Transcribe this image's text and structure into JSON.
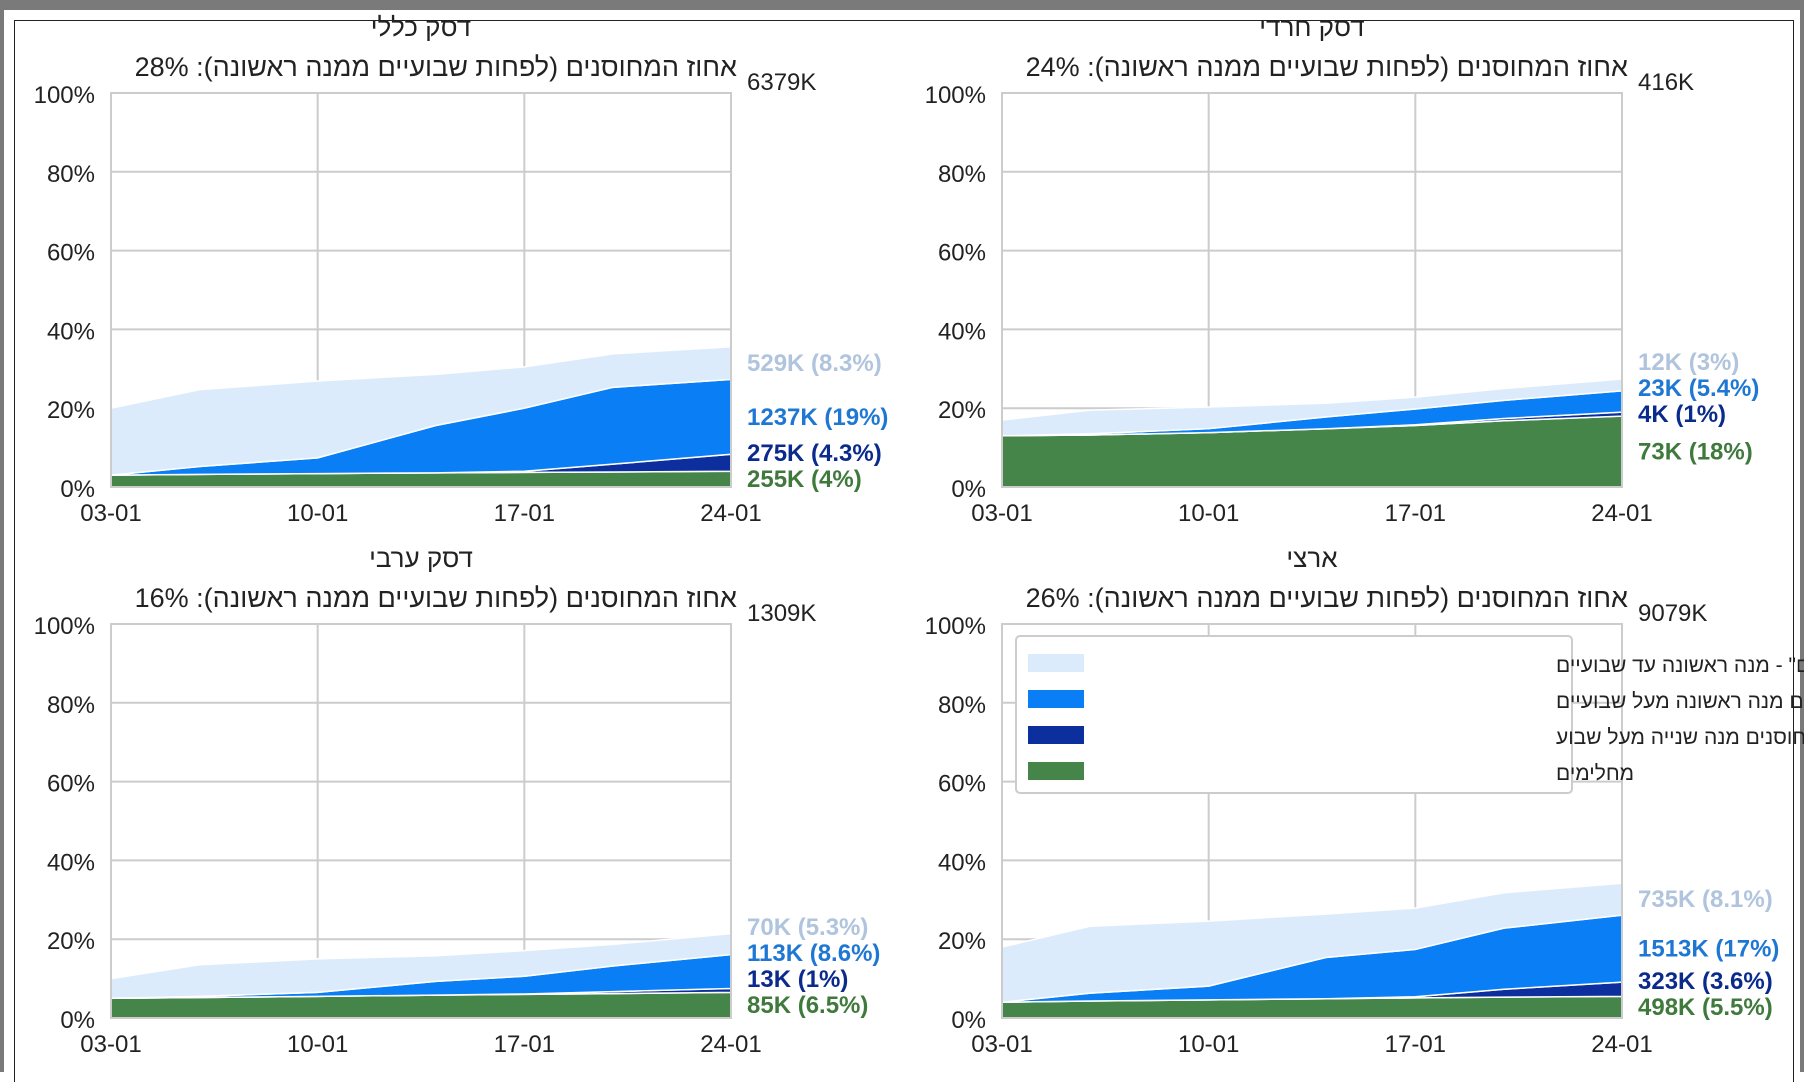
{
  "colors": {
    "light_blue": "#dcebfb",
    "mid_blue": "#0a7ef5",
    "dark_blue": "#0d2f9e",
    "green": "#46854a",
    "grid": "#cccccc",
    "label_light": "#b0c4de",
    "label_mid": "#1f77d4",
    "label_dark": "#0a2a8c",
    "label_green": "#3f7a3c"
  },
  "legend": [
    {
      "label": "\"מחוסנים לא חסינים\" - מנה ראשונה עד שבועיים",
      "color": "#dcebfb"
    },
    {
      "label": "מחוסנים מנה ראשונה מעל שבועיים",
      "color": "#0a7ef5"
    },
    {
      "label": "מחוסנים מנה שנייה מעל שבוע",
      "color": "#0d2f9e"
    },
    {
      "label": "מחלימים",
      "color": "#46854a"
    }
  ],
  "chart_data": [
    {
      "type": "area",
      "title": "דסק כללי",
      "subtitle": "אחוז המחוסנים (לפחות שבועיים ממנה ראשונה): 28%",
      "population_label": "6379K",
      "x_ticks": [
        "03-01",
        "10-01",
        "17-01",
        "24-01"
      ],
      "x": [
        "03-01",
        "06-01",
        "10-01",
        "14-01",
        "17-01",
        "20-01",
        "24-01"
      ],
      "y_ticks": [
        "0%",
        "20%",
        "40%",
        "60%",
        "80%",
        "100%"
      ],
      "ylim": [
        0,
        100
      ],
      "series": [
        {
          "name": "מחלימים",
          "values": [
            3,
            3.2,
            3.4,
            3.6,
            3.7,
            3.8,
            4
          ]
        },
        {
          "name": "מחוסנים מנה שנייה מעל שבוע",
          "values": [
            0,
            0,
            0,
            0,
            0.3,
            2,
            4.3
          ]
        },
        {
          "name": "מחוסנים מנה ראשונה מעל שבועיים",
          "values": [
            0,
            2,
            4,
            12,
            16,
            19.5,
            19
          ]
        },
        {
          "name": "\"מחוסנים לא חסינים\" - מנה ראשונה עד שבועיים",
          "values": [
            17,
            19.5,
            19.5,
            13,
            10.5,
            8.5,
            8.3
          ]
        }
      ],
      "end_labels": [
        {
          "text": "529K (8.3%)",
          "series": 3
        },
        {
          "text": "1237K (19%)",
          "series": 2
        },
        {
          "text": "275K (4.3%)",
          "series": 1
        },
        {
          "text": "255K (4%)",
          "series": 0
        }
      ]
    },
    {
      "type": "area",
      "title": "דסק חרדי",
      "subtitle": "אחוז המחוסנים (לפחות שבועיים ממנה ראשונה): 24%",
      "population_label": "416K",
      "x_ticks": [
        "03-01",
        "10-01",
        "17-01",
        "24-01"
      ],
      "x": [
        "03-01",
        "06-01",
        "10-01",
        "14-01",
        "17-01",
        "20-01",
        "24-01"
      ],
      "y_ticks": [
        "0%",
        "20%",
        "40%",
        "60%",
        "80%",
        "100%"
      ],
      "ylim": [
        0,
        100
      ],
      "series": [
        {
          "name": "מחלימים",
          "values": [
            13,
            13.2,
            13.8,
            14.8,
            15.6,
            16.8,
            18
          ]
        },
        {
          "name": "מחוסנים מנה שנייה מעל שבוע",
          "values": [
            0,
            0,
            0,
            0,
            0.2,
            0.6,
            1
          ]
        },
        {
          "name": "מחוסנים מנה ראשונה מעל שבועיים",
          "values": [
            0,
            0.3,
            1,
            3,
            4,
            4.6,
            5.4
          ]
        },
        {
          "name": "\"מחוסנים לא חסינים\" - מנה ראשונה עד שבועיים",
          "values": [
            4,
            6,
            5.5,
            3.5,
            3,
            3,
            3
          ]
        }
      ],
      "end_labels": [
        {
          "text": "12K (3%)",
          "series": 3
        },
        {
          "text": "23K (5.4%)",
          "series": 2
        },
        {
          "text": "4K (1%)",
          "series": 1
        },
        {
          "text": "73K (18%)",
          "series": 0
        }
      ]
    },
    {
      "type": "area",
      "title": "דסק ערבי",
      "subtitle": "אחוז המחוסנים (לפחות שבועיים ממנה ראשונה): 16%",
      "population_label": "1309K",
      "x_ticks": [
        "03-01",
        "10-01",
        "17-01",
        "24-01"
      ],
      "x": [
        "03-01",
        "06-01",
        "10-01",
        "14-01",
        "17-01",
        "20-01",
        "24-01"
      ],
      "y_ticks": [
        "0%",
        "20%",
        "40%",
        "60%",
        "80%",
        "100%"
      ],
      "ylim": [
        0,
        100
      ],
      "series": [
        {
          "name": "מחלימים",
          "values": [
            5,
            5.2,
            5.5,
            5.8,
            6,
            6.2,
            6.5
          ]
        },
        {
          "name": "מחוסנים מנה שנייה מעל שבוע",
          "values": [
            0,
            0,
            0,
            0,
            0.1,
            0.5,
            1
          ]
        },
        {
          "name": "מחוסנים מנה ראשונה מעל שבועיים",
          "values": [
            0,
            0.3,
            1,
            3.5,
            4.5,
            6.5,
            8.6
          ]
        },
        {
          "name": "\"מחוסנים לא חסינים\" - מנה ראשונה עד שבועיים",
          "values": [
            5,
            8,
            8.5,
            6.5,
            6.5,
            5.5,
            5.3
          ]
        }
      ],
      "end_labels": [
        {
          "text": "70K (5.3%)",
          "series": 3
        },
        {
          "text": "113K (8.6%)",
          "series": 2
        },
        {
          "text": "13K (1%)",
          "series": 1
        },
        {
          "text": "85K (6.5%)",
          "series": 0
        }
      ]
    },
    {
      "type": "area",
      "title": "ארצי",
      "subtitle": "אחוז המחוסנים (לפחות שבועיים ממנה ראשונה): 26%",
      "population_label": "9079K",
      "x_ticks": [
        "03-01",
        "10-01",
        "17-01",
        "24-01"
      ],
      "x": [
        "03-01",
        "06-01",
        "10-01",
        "14-01",
        "17-01",
        "20-01",
        "24-01"
      ],
      "y_ticks": [
        "0%",
        "20%",
        "40%",
        "60%",
        "80%",
        "100%"
      ],
      "ylim": [
        0,
        100
      ],
      "series": [
        {
          "name": "מחלימים",
          "values": [
            4,
            4.3,
            4.6,
            4.9,
            5.1,
            5.3,
            5.5
          ]
        },
        {
          "name": "מחוסנים מנה שנייה מעל שבוע",
          "values": [
            0,
            0,
            0,
            0,
            0.3,
            2,
            3.6
          ]
        },
        {
          "name": "מחוסנים מנה ראשונה מעל שבועיים",
          "values": [
            0,
            2,
            3.5,
            10.5,
            12,
            15.5,
            17
          ]
        },
        {
          "name": "\"מחוסנים לא חסינים\" - מנה ראשונה עד שבועיים",
          "values": [
            14,
            17,
            16.5,
            11,
            10.5,
            9,
            8.1
          ]
        }
      ],
      "end_labels": [
        {
          "text": "735K (8.1%)",
          "series": 3
        },
        {
          "text": "1513K (17%)",
          "series": 2
        },
        {
          "text": "323K (3.6%)",
          "series": 1
        },
        {
          "text": "498K (5.5%)",
          "series": 0
        }
      ]
    }
  ]
}
